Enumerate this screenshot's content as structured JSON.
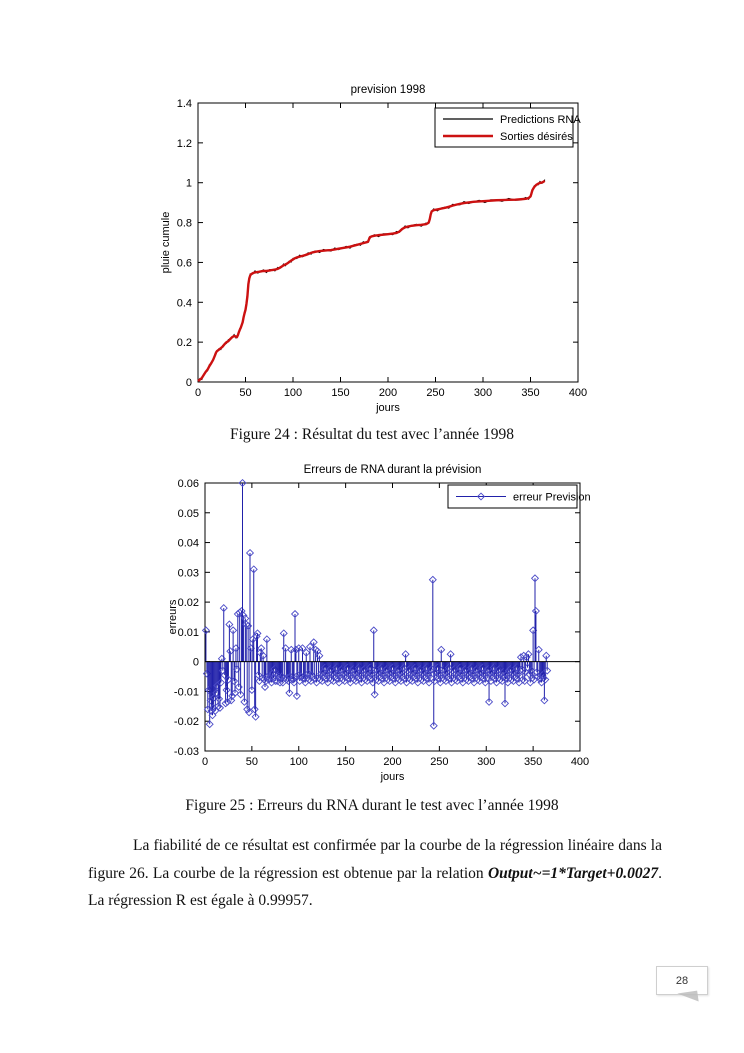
{
  "page": {
    "number": "28"
  },
  "captions": {
    "figure24": "Figure 24 : Résultat du test  avec l’année 1998",
    "figure25": "Figure 25 : Erreurs du RNA durant le test avec l’année 1998"
  },
  "paragraph": {
    "part1": "La fiabilité de ce résultat est confirmée par la courbe de la régression linéaire dans la figure 26.  La courbe de la régression est obtenue par la relation ",
    "formula": "Output~=1*Target+0.0027",
    "part2": ". La régression R est égale à 0.99957."
  },
  "chart_data": [
    {
      "type": "line",
      "title": "prevision 1998",
      "xlabel": "jours",
      "ylabel": "pluie cumule",
      "xlim": [
        0,
        400
      ],
      "ylim": [
        0,
        1.4
      ],
      "xticks": [
        0,
        50,
        100,
        150,
        200,
        250,
        300,
        350,
        400
      ],
      "yticks": [
        0,
        0.2,
        0.4,
        0.6,
        0.8,
        1,
        1.2,
        1.4
      ],
      "grid": false,
      "legend_position": "top-right",
      "legend": [
        {
          "label": "Predictions RNA",
          "color": "#000000",
          "width": 1.2
        },
        {
          "label": "Sorties désirés",
          "color": "#cc1111",
          "width": 2.4
        }
      ],
      "series": [
        {
          "name": "Sorties désirés",
          "color": "#cc1111",
          "points": [
            [
              0,
              0.005
            ],
            [
              2,
              0.012
            ],
            [
              4,
              0.02
            ],
            [
              6,
              0.035
            ],
            [
              8,
              0.05
            ],
            [
              10,
              0.062
            ],
            [
              12,
              0.08
            ],
            [
              14,
              0.095
            ],
            [
              16,
              0.112
            ],
            [
              18,
              0.135
            ],
            [
              19,
              0.148
            ],
            [
              20,
              0.155
            ],
            [
              22,
              0.162
            ],
            [
              24,
              0.17
            ],
            [
              26,
              0.178
            ],
            [
              28,
              0.19
            ],
            [
              30,
              0.2
            ],
            [
              32,
              0.205
            ],
            [
              34,
              0.216
            ],
            [
              36,
              0.225
            ],
            [
              38,
              0.231
            ],
            [
              40,
              0.228
            ],
            [
              41,
              0.225
            ],
            [
              42,
              0.235
            ],
            [
              43,
              0.25
            ],
            [
              44,
              0.262
            ],
            [
              45,
              0.272
            ],
            [
              46,
              0.286
            ],
            [
              47,
              0.3
            ],
            [
              48,
              0.325
            ],
            [
              49,
              0.345
            ],
            [
              50,
              0.362
            ],
            [
              51,
              0.392
            ],
            [
              52,
              0.43
            ],
            [
              53,
              0.49
            ],
            [
              54,
              0.52
            ],
            [
              55,
              0.535
            ],
            [
              56,
              0.541
            ],
            [
              58,
              0.547
            ],
            [
              60,
              0.55
            ],
            [
              63,
              0.552
            ],
            [
              66,
              0.555
            ],
            [
              69,
              0.557
            ],
            [
              72,
              0.557
            ],
            [
              75,
              0.559
            ],
            [
              78,
              0.562
            ],
            [
              81,
              0.564
            ],
            [
              84,
              0.568
            ],
            [
              86,
              0.573
            ],
            [
              88,
              0.579
            ],
            [
              90,
              0.585
            ],
            [
              92,
              0.59
            ],
            [
              94,
              0.595
            ],
            [
              96,
              0.602
            ],
            [
              98,
              0.609
            ],
            [
              100,
              0.615
            ],
            [
              102,
              0.621
            ],
            [
              104,
              0.625
            ],
            [
              107,
              0.629
            ],
            [
              110,
              0.633
            ],
            [
              113,
              0.637
            ],
            [
              116,
              0.642
            ],
            [
              119,
              0.648
            ],
            [
              121,
              0.651
            ],
            [
              124,
              0.654
            ],
            [
              128,
              0.657
            ],
            [
              132,
              0.659
            ],
            [
              136,
              0.661
            ],
            [
              140,
              0.662
            ],
            [
              144,
              0.665
            ],
            [
              148,
              0.669
            ],
            [
              152,
              0.672
            ],
            [
              156,
              0.675
            ],
            [
              160,
              0.679
            ],
            [
              164,
              0.684
            ],
            [
              168,
              0.689
            ],
            [
              171,
              0.693
            ],
            [
              174,
              0.697
            ],
            [
              177,
              0.701
            ],
            [
              179,
              0.704
            ],
            [
              180,
              0.716
            ],
            [
              181,
              0.727
            ],
            [
              183,
              0.731
            ],
            [
              186,
              0.734
            ],
            [
              190,
              0.737
            ],
            [
              195,
              0.739
            ],
            [
              200,
              0.742
            ],
            [
              205,
              0.745
            ],
            [
              209,
              0.748
            ],
            [
              212,
              0.755
            ],
            [
              215,
              0.768
            ],
            [
              218,
              0.776
            ],
            [
              221,
              0.78
            ],
            [
              225,
              0.784
            ],
            [
              230,
              0.787
            ],
            [
              235,
              0.789
            ],
            [
              240,
              0.792
            ],
            [
              242,
              0.797
            ],
            [
              243,
              0.802
            ],
            [
              244,
              0.818
            ],
            [
              245,
              0.842
            ],
            [
              246,
              0.856
            ],
            [
              248,
              0.862
            ],
            [
              252,
              0.866
            ],
            [
              256,
              0.87
            ],
            [
              260,
              0.874
            ],
            [
              264,
              0.879
            ],
            [
              268,
              0.885
            ],
            [
              272,
              0.89
            ],
            [
              276,
              0.894
            ],
            [
              280,
              0.898
            ],
            [
              285,
              0.901
            ],
            [
              290,
              0.904
            ],
            [
              296,
              0.906
            ],
            [
              302,
              0.908
            ],
            [
              308,
              0.91
            ],
            [
              314,
              0.912
            ],
            [
              320,
              0.913
            ],
            [
              327,
              0.914
            ],
            [
              334,
              0.915
            ],
            [
              340,
              0.917
            ],
            [
              345,
              0.919
            ],
            [
              348,
              0.923
            ],
            [
              350,
              0.931
            ],
            [
              351,
              0.946
            ],
            [
              352,
              0.963
            ],
            [
              354,
              0.979
            ],
            [
              356,
              0.989
            ],
            [
              358,
              0.995
            ],
            [
              360,
              0.999
            ],
            [
              362,
              1.001
            ],
            [
              364,
              1.006
            ],
            [
              365,
              1.009
            ]
          ]
        },
        {
          "name": "Predictions RNA",
          "color": "#000000",
          "derived_from": "Sorties désirés",
          "jitter": 0.007
        }
      ]
    },
    {
      "type": "stem",
      "title": "Erreurs de RNA durant la prévision",
      "xlabel": "jours",
      "ylabel": "erreurs",
      "xlim": [
        0,
        400
      ],
      "ylim": [
        -0.03,
        0.06
      ],
      "xticks": [
        0,
        50,
        100,
        150,
        200,
        250,
        300,
        350,
        400
      ],
      "yticks": [
        -0.03,
        -0.02,
        -0.01,
        0,
        0.01,
        0.02,
        0.03,
        0.04,
        0.05,
        0.06
      ],
      "grid": false,
      "legend_position": "top-right",
      "legend": [
        {
          "label": "erreur Prevision",
          "color": "#2121aa",
          "marker": "diamond"
        }
      ],
      "stem_color": "#2121aa",
      "marker_color": "#4b4bc8",
      "baseline": 0,
      "days_range": [
        1,
        365
      ],
      "baseline_pattern": [
        -0.003,
        -0.0055,
        -0.0025,
        -0.006,
        -0.004,
        -0.0065,
        -0.0035,
        -0.005,
        -0.002,
        -0.0058,
        -0.0042,
        -0.007
      ],
      "spikes": [
        [
          1,
          0.0105
        ],
        [
          2,
          -0.004
        ],
        [
          3,
          -0.016
        ],
        [
          4,
          -0.0095
        ],
        [
          5,
          -0.021
        ],
        [
          6,
          -0.013
        ],
        [
          7,
          -0.0165
        ],
        [
          8,
          -0.018
        ],
        [
          9,
          -0.0155
        ],
        [
          10,
          -0.012
        ],
        [
          11,
          -0.0165
        ],
        [
          12,
          -0.0105
        ],
        [
          13,
          -0.008
        ],
        [
          14,
          -0.015
        ],
        [
          15,
          -0.0125
        ],
        [
          16,
          -0.0155
        ],
        [
          17,
          -0.007
        ],
        [
          18,
          0.001
        ],
        [
          19,
          -0.003
        ],
        [
          20,
          0.018
        ],
        [
          21,
          -0.0045
        ],
        [
          22,
          -0.014
        ],
        [
          23,
          -0.0095
        ],
        [
          24,
          -0.0135
        ],
        [
          25,
          -0.006
        ],
        [
          26,
          0.0125
        ],
        [
          27,
          0.0035
        ],
        [
          28,
          -0.013
        ],
        [
          29,
          -0.0115
        ],
        [
          30,
          0.0105
        ],
        [
          31,
          -0.0065
        ],
        [
          32,
          -0.0105
        ],
        [
          33,
          0.0045
        ],
        [
          34,
          -0.0025
        ],
        [
          35,
          0.016
        ],
        [
          36,
          -0.0085
        ],
        [
          37,
          0.0165
        ],
        [
          38,
          -0.011
        ],
        [
          39,
          0.017
        ],
        [
          40,
          0.06
        ],
        [
          41,
          0.0155
        ],
        [
          42,
          -0.0135
        ],
        [
          43,
          0.0145
        ],
        [
          44,
          0.0125
        ],
        [
          45,
          -0.016
        ],
        [
          46,
          0.012
        ],
        [
          47,
          -0.017
        ],
        [
          48,
          0.0365
        ],
        [
          49,
          0.0045
        ],
        [
          50,
          -0.0095
        ],
        [
          51,
          0.0075
        ],
        [
          52,
          0.031
        ],
        [
          53,
          -0.016
        ],
        [
          54,
          -0.0185
        ],
        [
          55,
          0.0085
        ],
        [
          56,
          0.0095
        ],
        [
          57,
          -0.0045
        ],
        [
          58,
          -0.0065
        ],
        [
          59,
          0.003
        ],
        [
          60,
          0.0045
        ],
        [
          62,
          0.002
        ],
        [
          64,
          -0.0085
        ],
        [
          66,
          0.0075
        ],
        [
          68,
          -0.006
        ],
        [
          70,
          -0.005
        ],
        [
          72,
          -0.004
        ],
        [
          75,
          -0.0065
        ],
        [
          78,
          -0.0045
        ],
        [
          80,
          -0.007
        ],
        [
          82,
          -0.005
        ],
        [
          84,
          0.0095
        ],
        [
          86,
          0.0045
        ],
        [
          88,
          -0.0055
        ],
        [
          90,
          -0.0105
        ],
        [
          92,
          0.004
        ],
        [
          94,
          -0.006
        ],
        [
          96,
          0.016
        ],
        [
          97,
          0.004
        ],
        [
          98,
          -0.0115
        ],
        [
          99,
          -0.0045
        ],
        [
          100,
          0.0045
        ],
        [
          102,
          -0.005
        ],
        [
          104,
          0.0045
        ],
        [
          106,
          -0.0055
        ],
        [
          108,
          0.003
        ],
        [
          110,
          -0.004
        ],
        [
          112,
          0.005
        ],
        [
          114,
          -0.0045
        ],
        [
          116,
          0.0065
        ],
        [
          118,
          0.004
        ],
        [
          120,
          0.0035
        ],
        [
          122,
          0.002
        ],
        [
          180,
          0.0105
        ],
        [
          181,
          -0.011
        ],
        [
          214,
          0.0025
        ],
        [
          243,
          0.0275
        ],
        [
          244,
          -0.0215
        ],
        [
          252,
          0.004
        ],
        [
          262,
          0.0025
        ],
        [
          303,
          -0.0135
        ],
        [
          320,
          -0.014
        ],
        [
          337,
          0.0015
        ],
        [
          340,
          0.002
        ],
        [
          343,
          0.0015
        ],
        [
          345,
          0.0025
        ],
        [
          350,
          0.0105
        ],
        [
          352,
          0.028
        ],
        [
          353,
          0.017
        ],
        [
          356,
          0.004
        ],
        [
          358,
          -0.0055
        ],
        [
          360,
          -0.0045
        ],
        [
          362,
          -0.013
        ],
        [
          364,
          0.002
        ],
        [
          365,
          -0.003
        ]
      ]
    }
  ]
}
